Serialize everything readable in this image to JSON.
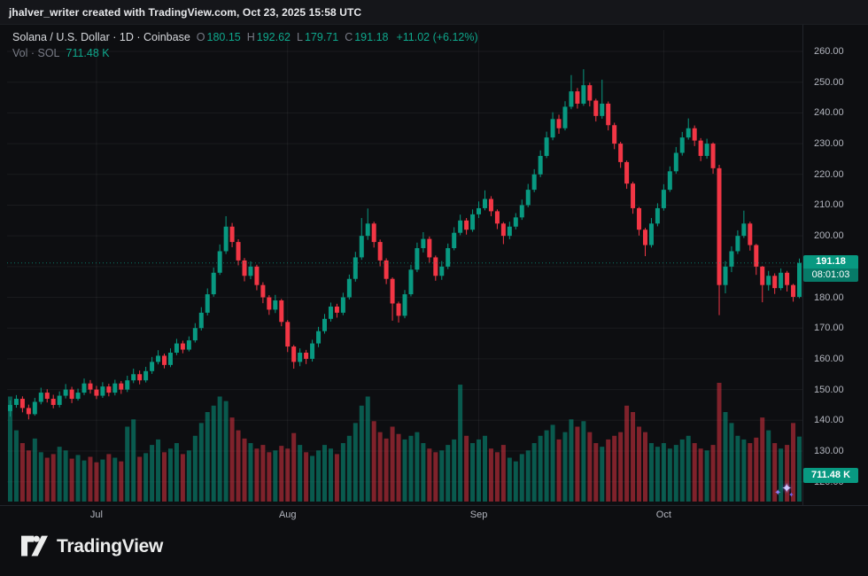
{
  "attribution": "jhalver_writer created with TradingView.com, Oct 23, 2025 15:58 UTC",
  "legend": {
    "title": "Solana / U.S. Dollar · 1D · Coinbase",
    "o_label": "O",
    "o_value": "180.15",
    "h_label": "H",
    "h_value": "192.62",
    "l_label": "L",
    "l_value": "179.71",
    "c_label": "C",
    "c_value": "191.18",
    "change": "+11.02 (+6.12%)",
    "vol_title": "Vol · SOL",
    "vol_value": "711.48 K"
  },
  "badges": {
    "price": "191.18",
    "countdown": "08:01:03",
    "volume": "711.48 K"
  },
  "logo": {
    "text": "TradingView"
  },
  "colors": {
    "up": "#089981",
    "down": "#f23645",
    "volume_up": "rgba(8,153,129,0.55)",
    "volume_down": "rgba(242,54,69,0.5)",
    "grid": "rgba(255,255,255,0.055)",
    "scale_text": "#b2b5be",
    "badge_bg": "#089981"
  },
  "chart_data": {
    "type": "candlestick",
    "symbol": "Solana / U.S. Dollar",
    "interval": "1D",
    "exchange": "Coinbase",
    "ohlc_current": {
      "open": 180.15,
      "high": 192.62,
      "low": 179.71,
      "close": 191.18,
      "change": "+11.02",
      "change_pct": "+6.12%"
    },
    "last_price": 191.18,
    "countdown": "08:01:03",
    "current_volume_k": 711.48,
    "volume_axis_max_k": 1300,
    "y_axis": {
      "min": 120,
      "max": 265,
      "ticks": [
        260,
        250,
        240,
        230,
        220,
        210,
        200,
        190,
        180,
        170,
        160,
        150,
        140,
        130,
        120
      ]
    },
    "x_ticks": [
      {
        "label": "Jul",
        "index": 14
      },
      {
        "label": "Aug",
        "index": 45
      },
      {
        "label": "Sep",
        "index": 76
      },
      {
        "label": "Oct",
        "index": 106
      }
    ],
    "candles_format": [
      "open",
      "high",
      "low",
      "close",
      "volume_k"
    ],
    "candles": [
      [
        143,
        146.5,
        141.2,
        145,
        1150
      ],
      [
        145,
        148.2,
        144.1,
        147,
        780
      ],
      [
        147,
        147.8,
        142.6,
        144,
        640
      ],
      [
        144,
        145.1,
        140.3,
        142,
        560
      ],
      [
        142,
        147.3,
        141.5,
        146,
        690
      ],
      [
        146,
        150.6,
        145.2,
        149,
        540
      ],
      [
        149,
        150.1,
        145.8,
        147,
        480
      ],
      [
        147,
        148.3,
        143.9,
        145,
        520
      ],
      [
        145,
        149.4,
        144.2,
        148,
        600
      ],
      [
        148,
        151.8,
        147.1,
        150,
        560
      ],
      [
        150,
        150.9,
        145.6,
        147,
        470
      ],
      [
        147,
        150.3,
        146.4,
        149,
        510
      ],
      [
        149,
        153.6,
        148.2,
        152,
        450
      ],
      [
        152,
        153.1,
        148.7,
        150,
        490
      ],
      [
        150,
        151.2,
        146.9,
        148,
        430
      ],
      [
        148,
        152.4,
        147.3,
        151,
        460
      ],
      [
        151,
        151.9,
        147.8,
        149,
        520
      ],
      [
        149,
        153.2,
        148.1,
        152,
        480
      ],
      [
        152,
        152.8,
        148.6,
        150,
        440
      ],
      [
        150,
        154.5,
        149.2,
        153,
        820
      ],
      [
        153,
        156.8,
        152.1,
        155,
        900
      ],
      [
        155,
        156.2,
        151.7,
        153,
        490
      ],
      [
        153,
        157.4,
        152.3,
        156,
        530
      ],
      [
        156,
        160.6,
        155.1,
        159,
        620
      ],
      [
        159,
        162.8,
        158.2,
        161,
        680
      ],
      [
        161,
        161.7,
        156.9,
        158,
        540
      ],
      [
        158,
        163.4,
        157.3,
        162,
        580
      ],
      [
        162,
        166.5,
        161.2,
        165,
        640
      ],
      [
        165,
        165.9,
        161.8,
        163,
        520
      ],
      [
        163,
        167.3,
        162.4,
        166,
        560
      ],
      [
        166,
        171.6,
        165.3,
        170,
        720
      ],
      [
        170,
        176.8,
        169.2,
        175,
        860
      ],
      [
        175,
        182.9,
        174.1,
        181,
        980
      ],
      [
        181,
        189.7,
        180.2,
        188,
        1050
      ],
      [
        188,
        197.2,
        187.3,
        195,
        1150
      ],
      [
        195,
        206.4,
        194.1,
        203,
        1100
      ],
      [
        203,
        204.2,
        196.3,
        198,
        920
      ],
      [
        198,
        198.9,
        190.4,
        192,
        780
      ],
      [
        192,
        192.8,
        185.2,
        187,
        690
      ],
      [
        187,
        191.7,
        185.9,
        190,
        640
      ],
      [
        190,
        190.6,
        182.3,
        184,
        580
      ],
      [
        184,
        184.9,
        178.1,
        180,
        620
      ],
      [
        180,
        180.7,
        174.3,
        176,
        540
      ],
      [
        176,
        180.8,
        174.9,
        179,
        560
      ],
      [
        179,
        179.5,
        170.6,
        172,
        610
      ],
      [
        172,
        172.6,
        162.2,
        164,
        580
      ],
      [
        164,
        164.5,
        156.8,
        159,
        750
      ],
      [
        159,
        163.4,
        157.6,
        162,
        620
      ],
      [
        162,
        162.9,
        158.3,
        160,
        540
      ],
      [
        160,
        166.2,
        159.1,
        165,
        500
      ],
      [
        165,
        170.4,
        163.8,
        169,
        560
      ],
      [
        169,
        174.6,
        168.2,
        173,
        620
      ],
      [
        173,
        178.3,
        172.1,
        177,
        580
      ],
      [
        177,
        177.9,
        173.4,
        175,
        520
      ],
      [
        175,
        181.5,
        174.2,
        180,
        640
      ],
      [
        180,
        187.4,
        179.3,
        186,
        720
      ],
      [
        186,
        194.8,
        185.1,
        193,
        860
      ],
      [
        193,
        205.8,
        192.2,
        200,
        1050
      ],
      [
        200,
        208.9,
        198.7,
        204,
        1150
      ],
      [
        204,
        204.6,
        196.2,
        198,
        880
      ],
      [
        198,
        198.8,
        190.1,
        192,
        760
      ],
      [
        192,
        192.7,
        184.3,
        186,
        690
      ],
      [
        186,
        186.5,
        172.4,
        178,
        820
      ],
      [
        178,
        178.6,
        171.8,
        174,
        740
      ],
      [
        174,
        182.4,
        173.2,
        181,
        680
      ],
      [
        181,
        190.6,
        180.3,
        189,
        720
      ],
      [
        189,
        197.8,
        188.2,
        196,
        760
      ],
      [
        196,
        201.2,
        194.6,
        199,
        640
      ],
      [
        199,
        199.8,
        191.3,
        193,
        580
      ],
      [
        193,
        193.6,
        185.4,
        187,
        540
      ],
      [
        187,
        191.8,
        185.7,
        190,
        560
      ],
      [
        190,
        197.5,
        189.2,
        196,
        620
      ],
      [
        196,
        202.8,
        195.3,
        201,
        680
      ],
      [
        201,
        206.9,
        200.2,
        205,
        1280
      ],
      [
        205,
        205.8,
        200.4,
        202,
        720
      ],
      [
        202,
        208.6,
        201.3,
        207,
        640
      ],
      [
        207,
        211.2,
        205.8,
        209,
        680
      ],
      [
        209,
        214.8,
        208.3,
        212,
        720
      ],
      [
        212,
        212.9,
        206.4,
        208,
        580
      ],
      [
        208,
        208.6,
        202.2,
        204,
        540
      ],
      [
        204,
        204.5,
        197.3,
        200,
        620
      ],
      [
        200,
        204.6,
        198.9,
        203,
        480
      ],
      [
        203,
        207.4,
        202.1,
        206,
        440
      ],
      [
        206,
        211.8,
        205.2,
        210,
        520
      ],
      [
        210,
        216.9,
        209.3,
        215,
        560
      ],
      [
        215,
        221.7,
        214.2,
        220,
        640
      ],
      [
        220,
        227.8,
        219.1,
        226,
        720
      ],
      [
        226,
        233.9,
        225.3,
        232,
        780
      ],
      [
        232,
        240.2,
        231.1,
        238,
        840
      ],
      [
        238,
        239.4,
        233.2,
        235,
        680
      ],
      [
        235,
        243.8,
        234.3,
        242,
        760
      ],
      [
        242,
        252.3,
        241.2,
        247,
        900
      ],
      [
        247,
        248.1,
        241.4,
        243,
        820
      ],
      [
        243,
        254.2,
        242.3,
        249,
        880
      ],
      [
        249,
        249.8,
        242.1,
        244,
        760
      ],
      [
        244,
        244.6,
        237.2,
        239,
        640
      ],
      [
        239,
        250.8,
        238.1,
        243,
        600
      ],
      [
        243,
        243.7,
        234.3,
        236,
        680
      ],
      [
        236,
        236.8,
        228.2,
        230,
        720
      ],
      [
        230,
        230.6,
        222.1,
        224,
        760
      ],
      [
        224,
        224.5,
        215.3,
        217,
        1050
      ],
      [
        217,
        217.6,
        207.2,
        209,
        980
      ],
      [
        209,
        209.4,
        200.1,
        202,
        820
      ],
      [
        202,
        202.6,
        193.4,
        197,
        760
      ],
      [
        197,
        205.8,
        196.2,
        204,
        640
      ],
      [
        204,
        210.6,
        203.1,
        209,
        600
      ],
      [
        209,
        216.8,
        208.2,
        215,
        640
      ],
      [
        215,
        222.6,
        214.3,
        221,
        580
      ],
      [
        221,
        228.9,
        220.2,
        227,
        620
      ],
      [
        227,
        233.8,
        226.1,
        232,
        680
      ],
      [
        232,
        238.2,
        231.3,
        235,
        720
      ],
      [
        235,
        235.9,
        229.2,
        231,
        640
      ],
      [
        231,
        231.8,
        224.3,
        226,
        580
      ],
      [
        226,
        231.6,
        225.1,
        230,
        560
      ],
      [
        230,
        230.4,
        220.2,
        222,
        620
      ],
      [
        222,
        223.1,
        174.2,
        184,
        1300
      ],
      [
        184,
        191.8,
        181.3,
        190,
        980
      ],
      [
        190,
        196.6,
        188.2,
        195,
        860
      ],
      [
        195,
        201.8,
        194.1,
        200,
        720
      ],
      [
        200,
        208.2,
        199.3,
        204,
        680
      ],
      [
        204,
        204.6,
        195.2,
        197,
        640
      ],
      [
        197,
        197.4,
        187.3,
        190,
        700
      ],
      [
        190,
        190.2,
        178.4,
        184,
        920
      ],
      [
        184,
        188.6,
        182.2,
        187,
        780
      ],
      [
        187,
        187.8,
        181.1,
        183,
        640
      ],
      [
        183,
        189.4,
        182.3,
        188,
        580
      ],
      [
        188,
        188.6,
        181.9,
        184,
        620
      ],
      [
        184,
        184.4,
        178.6,
        180.15,
        860
      ],
      [
        180.15,
        192.62,
        179.71,
        191.18,
        711.48
      ]
    ]
  }
}
